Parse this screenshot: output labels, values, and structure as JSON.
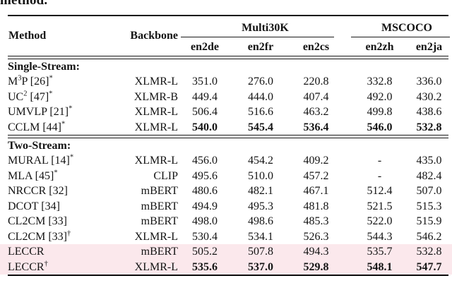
{
  "intro": {
    "text": "method."
  },
  "colors": {
    "highlight_row": "#fbe8ec",
    "text": "#141414"
  },
  "table": {
    "header": {
      "method": "Method",
      "backbone": "Backbone",
      "groups": [
        {
          "label": "Multi30K",
          "cols": [
            "en2de",
            "en2fr",
            "en2cs"
          ]
        },
        {
          "label": "MSCOCO",
          "cols": [
            "en2zh",
            "en2ja"
          ]
        }
      ]
    },
    "sections": [
      {
        "label": "Single-Stream:",
        "rows": [
          {
            "method": {
              "pre": "M",
              "sup1": "3",
              "mid": "P [26]",
              "sup2": "*"
            },
            "backbone": "XLMR-L",
            "values": [
              "351.0",
              "276.0",
              "220.8",
              "332.8",
              "336.0"
            ],
            "bold": false,
            "highlight": false
          },
          {
            "method": {
              "pre": "UC",
              "sup1": "2",
              "mid": " [47]",
              "sup2": "*"
            },
            "backbone": "XLMR-B",
            "values": [
              "449.4",
              "444.0",
              "407.4",
              "492.0",
              "430.2"
            ],
            "bold": false,
            "highlight": false
          },
          {
            "method": {
              "pre": "UMVLP [21]",
              "sup1": "",
              "mid": "",
              "sup2": "*"
            },
            "backbone": "XLMR-L",
            "values": [
              "506.4",
              "516.6",
              "463.2",
              "499.8",
              "438.6"
            ],
            "bold": false,
            "highlight": false
          },
          {
            "method": {
              "pre": "CCLM [44]",
              "sup1": "",
              "mid": "",
              "sup2": "*"
            },
            "backbone": "XLMR-L",
            "values": [
              "540.0",
              "545.4",
              "536.4",
              "546.0",
              "532.8"
            ],
            "bold": true,
            "highlight": false
          }
        ]
      },
      {
        "label": "Two-Stream:",
        "rows": [
          {
            "method": {
              "pre": "MURAL [14]",
              "sup1": "",
              "mid": "",
              "sup2": "*"
            },
            "backbone": "XLMR-L",
            "values": [
              "456.0",
              "454.2",
              "409.2",
              "-",
              "435.0"
            ],
            "bold": false,
            "highlight": false
          },
          {
            "method": {
              "pre": "MLA [45]",
              "sup1": "",
              "mid": "",
              "sup2": "*"
            },
            "backbone": "CLIP",
            "values": [
              "495.6",
              "510.0",
              "457.2",
              "-",
              "482.4"
            ],
            "bold": false,
            "highlight": false
          },
          {
            "method": {
              "pre": "NRCCR [32]",
              "sup1": "",
              "mid": "",
              "sup2": ""
            },
            "backbone": "mBERT",
            "values": [
              "480.6",
              "482.1",
              "467.1",
              "512.4",
              "507.0"
            ],
            "bold": false,
            "highlight": false
          },
          {
            "method": {
              "pre": "DCOT [34]",
              "sup1": "",
              "mid": "",
              "sup2": ""
            },
            "backbone": "mBERT",
            "values": [
              "494.9",
              "495.3",
              "481.8",
              "521.5",
              "515.3"
            ],
            "bold": false,
            "highlight": false
          },
          {
            "method": {
              "pre": "CL2CM [33]",
              "sup1": "",
              "mid": "",
              "sup2": ""
            },
            "backbone": "mBERT",
            "values": [
              "498.0",
              "498.6",
              "485.3",
              "522.0",
              "515.9"
            ],
            "bold": false,
            "highlight": false
          },
          {
            "method": {
              "pre": "CL2CM [33]",
              "sup1": "",
              "mid": "",
              "sup2": "†"
            },
            "backbone": "XLMR-L",
            "values": [
              "530.4",
              "534.1",
              "526.3",
              "544.3",
              "546.2"
            ],
            "bold": false,
            "highlight": false
          },
          {
            "method": {
              "pre": "LECCR",
              "sup1": "",
              "mid": "",
              "sup2": ""
            },
            "backbone": "mBERT",
            "values": [
              "505.2",
              "507.8",
              "494.3",
              "535.7",
              "532.8"
            ],
            "bold": false,
            "highlight": true
          },
          {
            "method": {
              "pre": "LECCR",
              "sup1": "",
              "mid": "",
              "sup2": "†"
            },
            "backbone": "XLMR-L",
            "values": [
              "535.6",
              "537.0",
              "529.8",
              "548.1",
              "547.7"
            ],
            "bold": true,
            "highlight": true
          }
        ]
      }
    ]
  }
}
